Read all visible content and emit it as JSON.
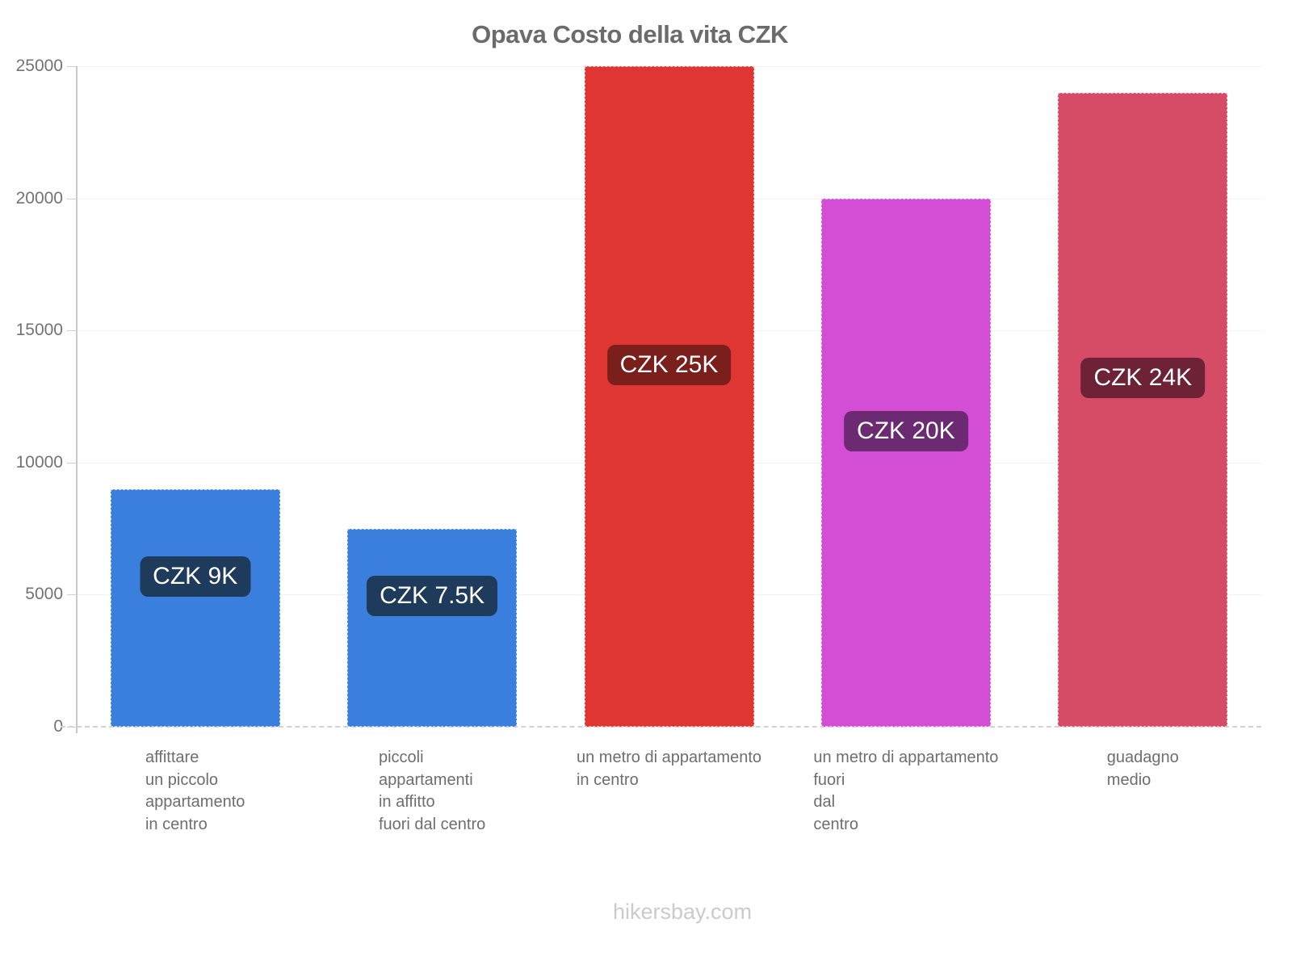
{
  "title": "Opava Costo della vita CZK",
  "footer": "hikersbay.com",
  "chart_data": {
    "type": "bar",
    "title": "Opava Costo della vita CZK",
    "xlabel": "",
    "ylabel": "",
    "ylim": [
      0,
      25000
    ],
    "yticks": [
      0,
      5000,
      10000,
      15000,
      20000,
      25000
    ],
    "grid": "horizontal",
    "legend": "none",
    "currency": "CZK",
    "categories": [
      "affittare un piccolo appartamento in centro",
      "piccoli appartamenti in affitto fuori dal centro",
      "un metro di appartamento in centro",
      "un metro di appartamento fuori dal centro",
      "guadagno medio"
    ],
    "bars": [
      {
        "label_lines": [
          "affittare",
          "un piccolo",
          "appartamento",
          "in centro"
        ],
        "value": 9000,
        "value_label": "CZK 9K",
        "color": "#3a7ede",
        "label_bg": "#1f3b5c"
      },
      {
        "label_lines": [
          "piccoli",
          "appartamenti",
          "in affitto",
          "fuori dal centro"
        ],
        "value": 7500,
        "value_label": "CZK 7.5K",
        "color": "#3a7ede",
        "label_bg": "#1f3b5c"
      },
      {
        "label_lines": [
          "un metro di appartamento",
          "in centro"
        ],
        "value": 25000,
        "value_label": "CZK 25K",
        "color": "#df3633",
        "label_bg": "#7a1f1c"
      },
      {
        "label_lines": [
          "un metro di appartamento",
          "fuori",
          "dal",
          "centro"
        ],
        "value": 20000,
        "value_label": "CZK 20K",
        "color": "#d44dd5",
        "label_bg": "#6b2a71"
      },
      {
        "label_lines": [
          "guadagno",
          "medio"
        ],
        "value": 24000,
        "value_label": "CZK 24K",
        "color": "#d64b66",
        "label_bg": "#6d2236"
      }
    ]
  }
}
